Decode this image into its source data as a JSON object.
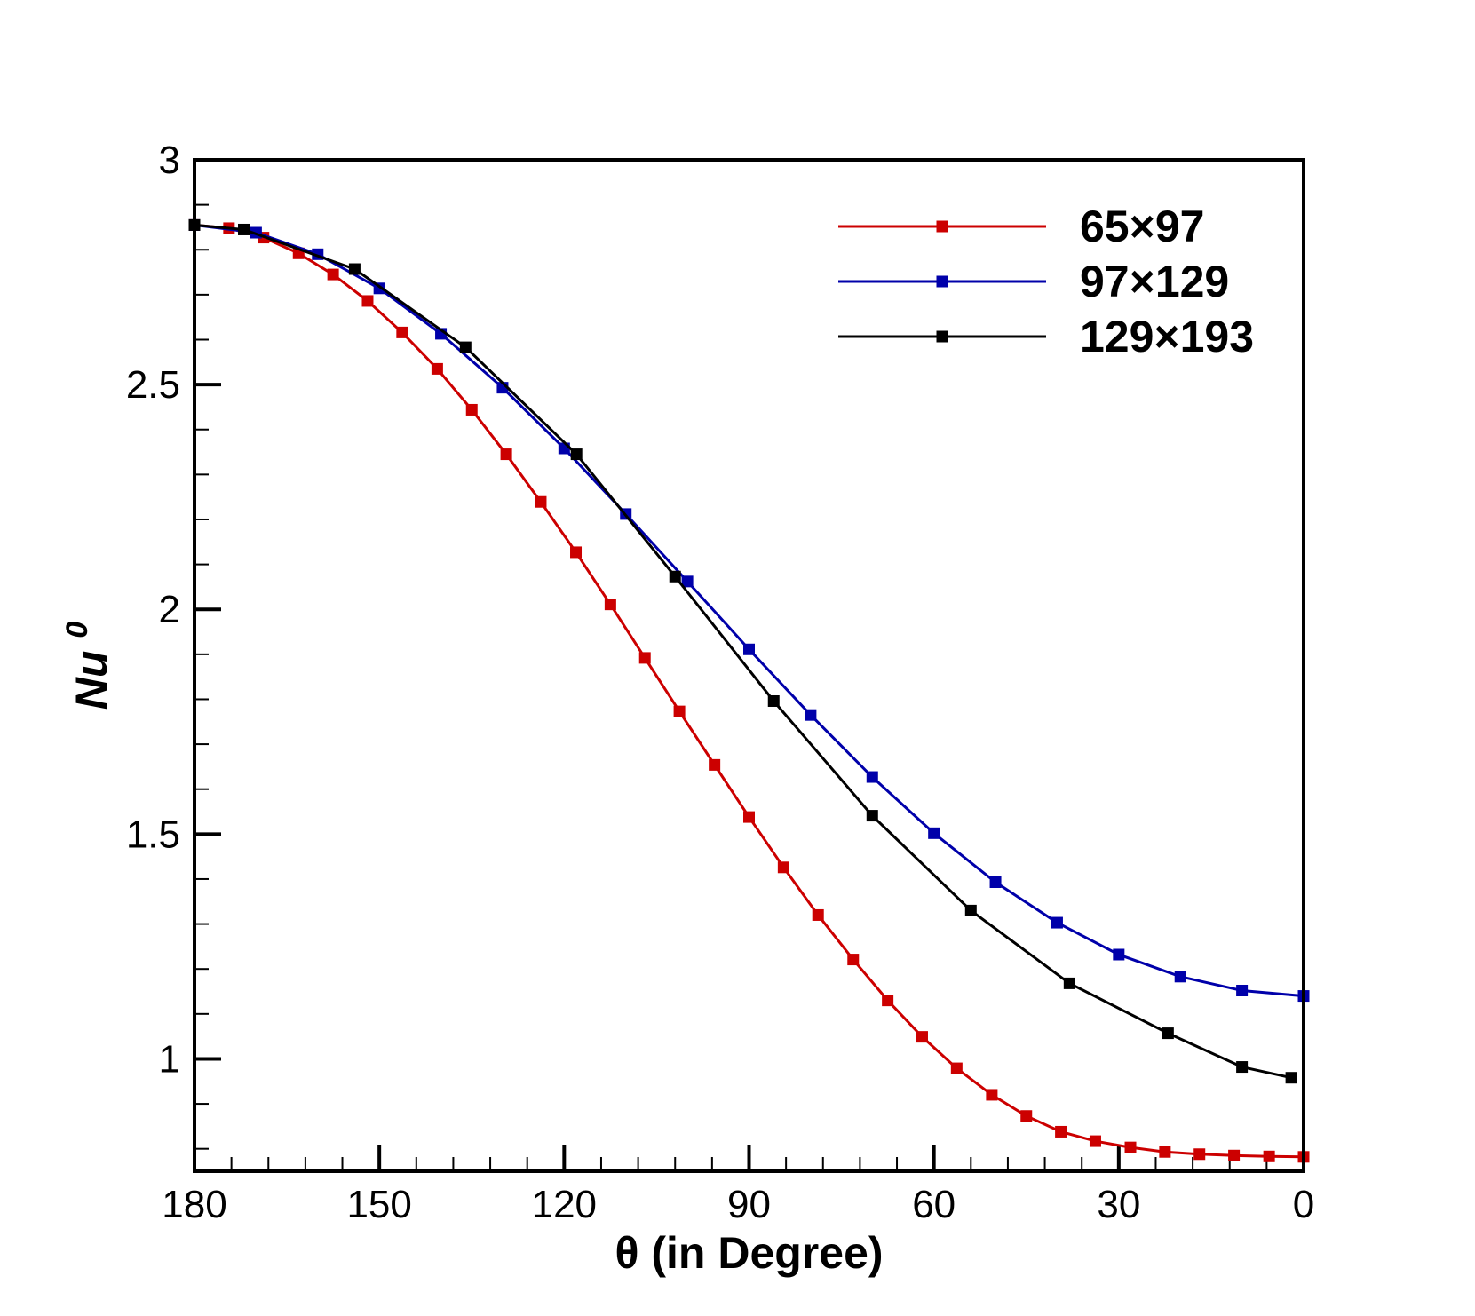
{
  "chart_data": {
    "type": "line",
    "title": "",
    "xlabel": "θ (in Degree)",
    "ylabel": "Nu",
    "ylabel_superscript": "0",
    "xlim": [
      180,
      0
    ],
    "ylim": [
      0.75,
      3
    ],
    "x_reversed": true,
    "x_ticks": [
      180,
      150,
      120,
      90,
      60,
      30,
      0
    ],
    "x_tick_labels": [
      "180",
      "150",
      "120",
      "90",
      "60",
      "30",
      "0"
    ],
    "y_ticks": [
      1,
      1.5,
      2,
      2.5,
      3
    ],
    "y_tick_labels": [
      "1",
      "1.5",
      "2",
      "2.5",
      "3"
    ],
    "grid": false,
    "legend_position": "top-right",
    "series": [
      {
        "name": "65×97",
        "color": "#cc0000",
        "marker_color": "#cc0000",
        "marker": "square",
        "x": [
          180.0,
          174.4,
          168.8,
          163.1,
          157.5,
          151.9,
          146.3,
          140.6,
          135.0,
          129.4,
          123.8,
          118.1,
          112.5,
          106.9,
          101.3,
          95.6,
          90.0,
          84.4,
          78.8,
          73.1,
          67.5,
          61.9,
          56.3,
          50.6,
          45.0,
          39.4,
          33.8,
          28.1,
          22.5,
          16.9,
          11.3,
          5.6,
          0.0
        ],
        "y": [
          2.855,
          2.848,
          2.827,
          2.792,
          2.745,
          2.686,
          2.616,
          2.535,
          2.444,
          2.345,
          2.239,
          2.127,
          2.011,
          1.892,
          1.773,
          1.654,
          1.538,
          1.426,
          1.32,
          1.221,
          1.13,
          1.049,
          0.979,
          0.92,
          0.873,
          0.838,
          0.817,
          0.803,
          0.793,
          0.788,
          0.785,
          0.783,
          0.782
        ]
      },
      {
        "name": "97×129",
        "color": "#0000aa",
        "marker_color": "#0000aa",
        "marker": "square",
        "x": [
          180.0,
          170.0,
          160.0,
          150.0,
          140.0,
          130.0,
          120.0,
          110.0,
          100.0,
          90.0,
          80.0,
          70.0,
          60.0,
          50.0,
          40.0,
          30.0,
          20.0,
          10.0,
          0.0
        ],
        "y": [
          2.855,
          2.838,
          2.79,
          2.714,
          2.613,
          2.493,
          2.358,
          2.212,
          2.062,
          1.911,
          1.765,
          1.627,
          1.502,
          1.393,
          1.303,
          1.232,
          1.183,
          1.152,
          1.14
        ]
      },
      {
        "name": "129×193",
        "color": "#000000",
        "marker_color": "#000000",
        "marker": "square",
        "x": [
          180.0,
          172.0,
          154.0,
          136.0,
          118.0,
          102.0,
          86.0,
          70.0,
          54.0,
          38.0,
          22.0,
          10.0,
          2.0
        ],
        "y": [
          2.855,
          2.845,
          2.757,
          2.583,
          2.345,
          2.073,
          1.796,
          1.541,
          1.33,
          1.168,
          1.057,
          0.982,
          0.958
        ]
      }
    ]
  }
}
